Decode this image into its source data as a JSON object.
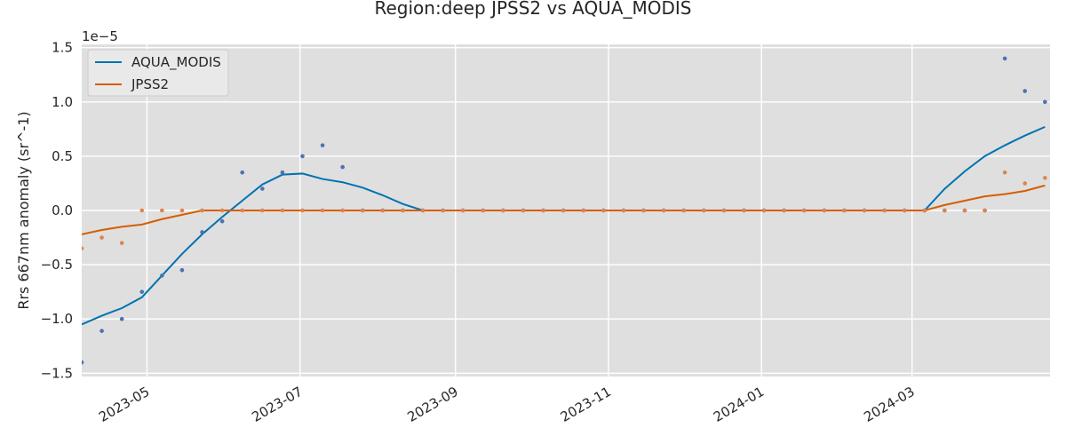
{
  "chart_data": {
    "type": "line",
    "title": "Region:deep JPSS2 vs AQUA_MODIS",
    "ylabel": "Rrs 667nm anomaly (sr^-1)",
    "xlabel": "",
    "y_offset_label": "1e−5",
    "xlim": [
      "2023-04-05",
      "2024-04-25"
    ],
    "ylim": [
      -1.53,
      1.53
    ],
    "y_ticks": [
      -1.5,
      -1.0,
      -0.5,
      0.0,
      0.5,
      1.0,
      1.5
    ],
    "y_tick_labels": [
      "−1.5",
      "−1.0",
      "−0.5",
      "0.0",
      "0.5",
      "1.0",
      "1.5"
    ],
    "x_ticks": [
      "2023-05-01",
      "2023-07-01",
      "2023-09-01",
      "2023-11-01",
      "2024-01-01",
      "2024-03-01"
    ],
    "x_tick_labels": [
      "2023-05",
      "2023-07",
      "2023-09",
      "2023-11",
      "2024-01",
      "2024-03"
    ],
    "grid": true,
    "legend_position": "top-left",
    "x": [
      "2023-04-05",
      "2023-04-13",
      "2023-04-21",
      "2023-04-29",
      "2023-05-07",
      "2023-05-15",
      "2023-05-23",
      "2023-05-31",
      "2023-06-08",
      "2023-06-16",
      "2023-06-24",
      "2023-07-02",
      "2023-07-10",
      "2023-07-18",
      "2023-07-26",
      "2023-08-03",
      "2023-08-11",
      "2023-08-19",
      "2023-08-27",
      "2023-09-04",
      "2023-09-12",
      "2023-09-20",
      "2023-09-28",
      "2023-10-06",
      "2023-10-14",
      "2023-10-22",
      "2023-10-30",
      "2023-11-07",
      "2023-11-15",
      "2023-11-23",
      "2023-12-01",
      "2023-12-09",
      "2023-12-17",
      "2023-12-25",
      "2024-01-02",
      "2024-01-10",
      "2024-01-18",
      "2024-01-26",
      "2024-02-03",
      "2024-02-11",
      "2024-02-19",
      "2024-02-27",
      "2024-03-06",
      "2024-03-14",
      "2024-03-22",
      "2024-03-30",
      "2024-04-07",
      "2024-04-15",
      "2024-04-23"
    ],
    "series": [
      {
        "name": "AQUA_MODIS",
        "color": "#0072B2",
        "scatter_color": "#4C72B0",
        "line": [
          -1.05,
          -0.97,
          -0.9,
          -0.8,
          -0.6,
          -0.4,
          -0.22,
          -0.06,
          0.09,
          0.24,
          0.33,
          0.34,
          0.29,
          0.26,
          0.21,
          0.14,
          0.06,
          0.0,
          0.0,
          0.0,
          0.0,
          0.0,
          0.0,
          0.0,
          0.0,
          0.0,
          0.0,
          0.0,
          0.0,
          0.0,
          0.0,
          0.0,
          0.0,
          0.0,
          0.0,
          0.0,
          0.0,
          0.0,
          0.0,
          0.0,
          0.0,
          0.0,
          0.0,
          0.2,
          0.36,
          0.5,
          0.6,
          0.69,
          0.77
        ],
        "points": [
          -1.4,
          -1.11,
          -1.0,
          -0.75,
          -0.6,
          -0.55,
          -0.2,
          -0.1,
          0.35,
          0.2,
          0.35,
          0.5,
          0.6,
          0.4,
          0.0,
          0.0,
          0.0,
          0.0,
          0.0,
          0.0,
          0.0,
          0.0,
          0.0,
          0.0,
          0.0,
          0.0,
          0.0,
          0.0,
          0.0,
          0.0,
          0.0,
          0.0,
          0.0,
          0.0,
          0.0,
          0.0,
          0.0,
          0.0,
          0.0,
          0.0,
          0.0,
          0.0,
          0.0,
          0.0,
          0.0,
          0.0,
          1.4,
          1.1,
          1.0
        ]
      },
      {
        "name": "JPSS2",
        "color": "#D55E00",
        "scatter_color": "#DD8452",
        "line": [
          -0.22,
          -0.18,
          -0.15,
          -0.13,
          -0.08,
          -0.04,
          0.0,
          0.0,
          0.0,
          0.0,
          0.0,
          0.0,
          0.0,
          0.0,
          0.0,
          0.0,
          0.0,
          0.0,
          0.0,
          0.0,
          0.0,
          0.0,
          0.0,
          0.0,
          0.0,
          0.0,
          0.0,
          0.0,
          0.0,
          0.0,
          0.0,
          0.0,
          0.0,
          0.0,
          0.0,
          0.0,
          0.0,
          0.0,
          0.0,
          0.0,
          0.0,
          0.0,
          0.0,
          0.05,
          0.09,
          0.13,
          0.15,
          0.18,
          0.23
        ],
        "points": [
          -0.35,
          -0.25,
          -0.3,
          0.0,
          0.0,
          0.0,
          0.0,
          0.0,
          0.0,
          0.0,
          0.0,
          0.0,
          0.0,
          0.0,
          0.0,
          0.0,
          0.0,
          0.0,
          0.0,
          0.0,
          0.0,
          0.0,
          0.0,
          0.0,
          0.0,
          0.0,
          0.0,
          0.0,
          0.0,
          0.0,
          0.0,
          0.0,
          0.0,
          0.0,
          0.0,
          0.0,
          0.0,
          0.0,
          0.0,
          0.0,
          0.0,
          0.0,
          0.0,
          0.0,
          0.0,
          0.0,
          0.35,
          0.25,
          0.3
        ]
      }
    ]
  }
}
